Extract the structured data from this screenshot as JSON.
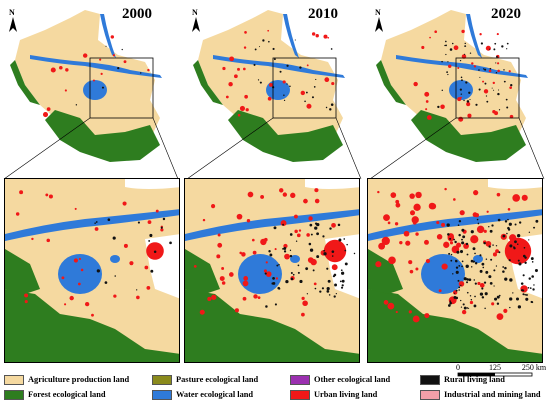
{
  "panels": [
    {
      "year": "2000",
      "urban": 0.35,
      "rural": 0.1
    },
    {
      "year": "2010",
      "urban": 0.65,
      "rural": 0.45
    },
    {
      "year": "2020",
      "urban": 0.9,
      "rural": 0.95
    }
  ],
  "north_label": "N",
  "legend": [
    {
      "key": "agri",
      "label": "Agriculture production land",
      "color": "#f5d9a0"
    },
    {
      "key": "forest",
      "label": "Forest ecological land",
      "color": "#2e7d1f"
    },
    {
      "key": "pasture",
      "label": "Pasture ecological land",
      "color": "#8a8a1c"
    },
    {
      "key": "water",
      "label": "Water ecological land",
      "color": "#2f7ad9"
    },
    {
      "key": "other",
      "label": "Other ecological land",
      "color": "#9b30b0"
    },
    {
      "key": "urban",
      "label": "Urban living land",
      "color": "#f01818"
    },
    {
      "key": "rural",
      "label": "Rural living land",
      "color": "#111111"
    },
    {
      "key": "industrial",
      "label": "Industrial and mining land",
      "color": "#f4a0a8"
    }
  ],
  "scale": {
    "ticks": [
      "0",
      "125",
      "250 km"
    ]
  }
}
